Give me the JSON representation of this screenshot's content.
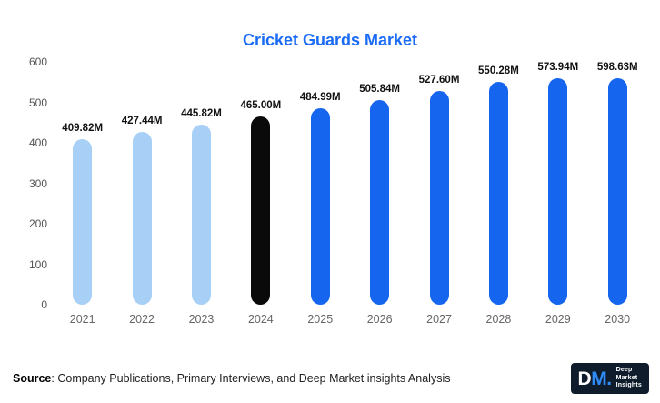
{
  "title": "Cricket Guards Market",
  "chart_data": {
    "type": "bar",
    "title": "Cricket Guards Market",
    "categories": [
      "2021",
      "2022",
      "2023",
      "2024",
      "2025",
      "2026",
      "2027",
      "2028",
      "2029",
      "2030"
    ],
    "values": [
      409.82,
      427.44,
      445.82,
      465.0,
      484.99,
      505.84,
      527.6,
      550.28,
      573.94,
      598.63
    ],
    "labels": [
      "409.82M",
      "427.44M",
      "445.82M",
      "465.00M",
      "484.99M",
      "505.84M",
      "527.60M",
      "550.28M",
      "573.94M",
      "598.63M"
    ],
    "xlabel": "",
    "ylabel": "",
    "ylim": [
      0,
      600
    ],
    "yticks": [
      0,
      100,
      200,
      300,
      400,
      500,
      600
    ],
    "grid": false,
    "legend": "none",
    "bar_color_keys": [
      "historical",
      "historical",
      "historical",
      "base_year",
      "forecast",
      "forecast",
      "forecast",
      "forecast",
      "forecast",
      "forecast"
    ],
    "palette": {
      "historical": "#a8d0f7",
      "base_year": "#0a0a0a",
      "forecast": "#1565ef",
      "title": "#1a6bf5"
    }
  },
  "footer": {
    "source_label": "Source",
    "source_text": ": Company Publications, Primary Interviews, and Deep Market insights Analysis",
    "logo": {
      "initials_d": "D",
      "initials_m": "M",
      "dot": ".",
      "line1": "Deep",
      "line2": "Market",
      "line3": "Insights"
    }
  }
}
